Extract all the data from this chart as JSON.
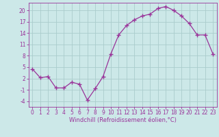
{
  "x": [
    0,
    1,
    2,
    3,
    4,
    5,
    6,
    7,
    8,
    9,
    10,
    11,
    12,
    13,
    14,
    15,
    16,
    17,
    18,
    19,
    20,
    21,
    22,
    23
  ],
  "y": [
    4.5,
    2.2,
    2.5,
    -0.5,
    -0.5,
    1.0,
    0.5,
    -3.7,
    -0.7,
    2.5,
    8.5,
    13.5,
    16.0,
    17.5,
    18.5,
    19.0,
    20.5,
    21.0,
    20.0,
    18.5,
    16.5,
    13.5,
    13.5,
    8.5
  ],
  "line_color": "#993399",
  "marker": "+",
  "marker_size": 4,
  "bg_color": "#cce8e8",
  "grid_color": "#aacccc",
  "xlabel": "Windchill (Refroidissement éolien,°C)",
  "xlim_min": -0.5,
  "xlim_max": 23.5,
  "ylim_min": -5.5,
  "ylim_max": 22,
  "yticks": [
    -4,
    -1,
    2,
    5,
    8,
    11,
    14,
    17,
    20
  ],
  "xticks": [
    0,
    1,
    2,
    3,
    4,
    5,
    6,
    7,
    8,
    9,
    10,
    11,
    12,
    13,
    14,
    15,
    16,
    17,
    18,
    19,
    20,
    21,
    22,
    23
  ],
  "label_color": "#993399",
  "tick_color": "#993399",
  "spine_color": "#993399",
  "font_size": 5.5,
  "xlabel_fontsize": 6.0,
  "linewidth": 0.9,
  "markeredgewidth": 1.0
}
